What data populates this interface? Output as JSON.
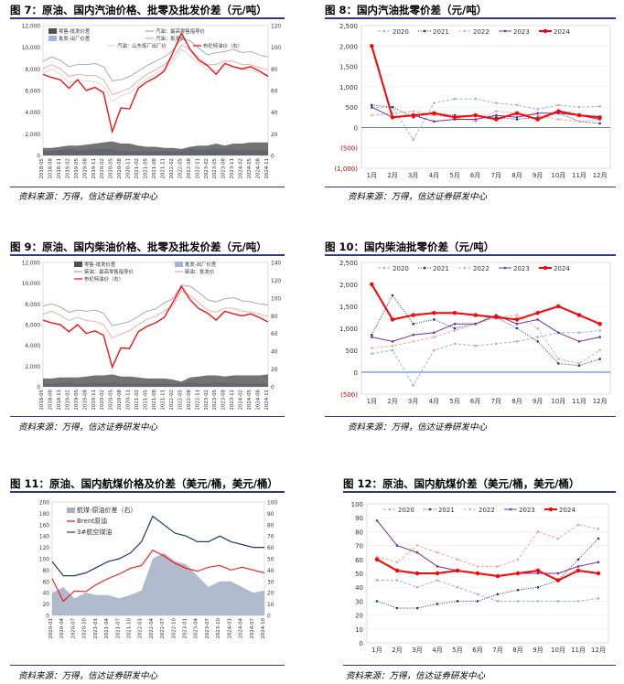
{
  "titles": {
    "fig7": "图 7：原油、国内汽油价格、批零及批发价差（元/吨）",
    "fig8": "图 8：国内汽油批零价差（元/吨）",
    "fig9": "图 9：原油、国内柴油价格、批零及批发价差（元/吨）",
    "fig10": "图 10：国内柴油批零价差（元/吨）",
    "fig11": "图 11：原油、国内航煤价格及价差（美元/桶，美元/桶）",
    "fig12": "图 12：原油、国内航煤价差（美元/桶，美元/桶）"
  },
  "source_text": "资料来源：万得，信达证券研发中心",
  "colors": {
    "rule": "#2b3a8f",
    "y2020": "#9fb3d6",
    "y2021": "#1f3b73",
    "y2022": "#f4a59c",
    "y2023": "#7030a0",
    "y2024": "#ff0000",
    "brent": "#ff0000",
    "retail": "#9aa3b8",
    "wholesale_spread": "#505050",
    "refinery_spread": "#9db4e0",
    "navy": "#1f3b73"
  },
  "month_labels": [
    "1月",
    "2月",
    "3月",
    "4月",
    "5月",
    "6月",
    "7月",
    "8月",
    "9月",
    "10月",
    "11月",
    "12月"
  ],
  "chart_data": [
    {
      "id": "fig7",
      "type": "area",
      "title": "图 7：原油、国内汽油价格、批零及批发价差（元/吨）",
      "legend": [
        "零售-批发价差",
        "批发-出厂价差",
        "汽油：最高零售指导价",
        "汽油：批发价",
        "汽油：山东炼厂出厂价",
        "布伦特油价（右）"
      ],
      "y_ticks": [
        "0",
        "2,000",
        "4,000",
        "6,000",
        "8,000",
        "10,000",
        "12,000"
      ],
      "ylim": [
        0,
        12000
      ],
      "y2_ticks": [
        "0",
        "20",
        "40",
        "60",
        "80",
        "100",
        "120"
      ],
      "y2lim": [
        0,
        120
      ],
      "x_ticks": [
        "2018-05",
        "2018-08",
        "2018-11",
        "2019-02",
        "2019-05",
        "2019-08",
        "2019-11",
        "2020-02",
        "2020-05",
        "2020-08",
        "2020-11",
        "2021-02",
        "2021-05",
        "2021-08",
        "2021-11",
        "2022-02",
        "2022-05",
        "2022-08",
        "2022-11",
        "2023-02",
        "2023-05",
        "2023-08",
        "2023-11",
        "2024-02",
        "2024-05",
        "2024-08",
        "2024-11"
      ],
      "series": [
        {
          "name": "汽油：最高零售指导价",
          "values": [
            8700,
            9100,
            8800,
            8200,
            8400,
            8400,
            8500,
            8200,
            6900,
            7000,
            7300,
            7800,
            8300,
            8700,
            9100,
            9700,
            10800,
            10600,
            9900,
            9300,
            9500,
            9600,
            9800,
            9500,
            9600,
            9300,
            9100
          ]
        },
        {
          "name": "汽油：批发价",
          "values": [
            8000,
            8400,
            8000,
            7300,
            7500,
            7400,
            7400,
            7000,
            5600,
            5900,
            6200,
            6900,
            7500,
            7900,
            8400,
            9000,
            10200,
            9800,
            9000,
            8400,
            8400,
            8700,
            8700,
            8400,
            8400,
            8100,
            7900
          ]
        },
        {
          "name": "汽油：山东炼厂出厂价",
          "values": [
            7600,
            8000,
            7500,
            6700,
            7000,
            6900,
            6800,
            6400,
            5000,
            5500,
            5800,
            6500,
            7100,
            7500,
            8000,
            8600,
            9800,
            9200,
            8500,
            7900,
            7800,
            8100,
            8200,
            7900,
            7900,
            7600,
            7500
          ]
        },
        {
          "name": "布伦特油价（右）",
          "values": [
            75,
            72,
            70,
            62,
            70,
            60,
            63,
            58,
            22,
            44,
            43,
            62,
            68,
            72,
            78,
            95,
            113,
            98,
            88,
            83,
            75,
            85,
            82,
            80,
            82,
            78,
            73
          ]
        },
        {
          "name": "零售-批发价差",
          "values": [
            700,
            700,
            800,
            900,
            900,
            1000,
            1100,
            1200,
            1300,
            1100,
            1100,
            900,
            800,
            800,
            700,
            700,
            600,
            800,
            900,
            900,
            1100,
            900,
            1100,
            1100,
            1200,
            1200,
            1200
          ]
        },
        {
          "name": "批发-出厂价差",
          "values": [
            400,
            400,
            500,
            600,
            500,
            500,
            600,
            600,
            600,
            400,
            400,
            400,
            400,
            400,
            400,
            400,
            400,
            600,
            500,
            500,
            600,
            600,
            500,
            500,
            500,
            500,
            400
          ]
        }
      ]
    },
    {
      "id": "fig8",
      "type": "line",
      "title": "图 8：国内汽油批零价差（元/吨）",
      "y_ticks": [
        "(1,000)",
        "(500)",
        "0",
        "500",
        "1,000",
        "1,500",
        "2,000",
        "2,500"
      ],
      "ylim": [
        -1000,
        2500
      ],
      "categories": [
        "1月",
        "2月",
        "3月",
        "4月",
        "5月",
        "6月",
        "7月",
        "8月",
        "9月",
        "10月",
        "11月",
        "12月"
      ],
      "series": [
        {
          "name": "2020",
          "values": [
            480,
            500,
            -300,
            600,
            700,
            700,
            600,
            550,
            450,
            550,
            500,
            520
          ]
        },
        {
          "name": "2021",
          "values": [
            550,
            500,
            250,
            350,
            300,
            280,
            250,
            200,
            250,
            350,
            150,
            100
          ]
        },
        {
          "name": "2022",
          "values": [
            300,
            350,
            400,
            300,
            250,
            150,
            400,
            350,
            300,
            200,
            150,
            200
          ]
        },
        {
          "name": "2023",
          "values": [
            500,
            250,
            300,
            150,
            200,
            200,
            300,
            250,
            350,
            350,
            300,
            200
          ]
        },
        {
          "name": "2024",
          "values": [
            2000,
            250,
            300,
            350,
            250,
            300,
            200,
            350,
            200,
            400,
            300,
            250
          ]
        }
      ]
    },
    {
      "id": "fig9",
      "type": "area",
      "title": "图 9：原油、国内柴油价格、批零及批发价差（元/吨）",
      "legend": [
        "零售-批发价差",
        "批发-出厂价差",
        "柴油：最高零售指导价",
        "柴油：批发价",
        "布伦特油价（右）"
      ],
      "y_ticks": [
        "0",
        "2,000",
        "4,000",
        "6,000",
        "8,000",
        "10,000",
        "12,000"
      ],
      "ylim": [
        0,
        12000
      ],
      "y2_ticks": [
        "0",
        "20",
        "40",
        "60",
        "80",
        "100",
        "120",
        "140"
      ],
      "y2lim": [
        0,
        140
      ],
      "x_ticks": [
        "2018-05",
        "2018-08",
        "2018-11",
        "2019-02",
        "2019-05",
        "2019-08",
        "2019-11",
        "2020-02",
        "2020-05",
        "2020-08",
        "2020-11",
        "2021-02",
        "2021-05",
        "2021-08",
        "2021-11",
        "2022-02",
        "2022-05",
        "2022-08",
        "2022-11",
        "2023-02",
        "2023-05",
        "2023-08",
        "2023-11",
        "2024-02",
        "2024-05",
        "2024-08",
        "2024-11"
      ],
      "series": [
        {
          "name": "柴油：最高零售指导价",
          "values": [
            7800,
            8000,
            7700,
            7200,
            7400,
            7300,
            7400,
            7100,
            5900,
            6100,
            6300,
            6800,
            7300,
            7500,
            8100,
            8500,
            9800,
            9700,
            9100,
            8400,
            8200,
            8500,
            8600,
            8300,
            8200,
            8000,
            7900
          ]
        },
        {
          "name": "柴油：批发价",
          "values": [
            7000,
            7300,
            6900,
            6400,
            6700,
            6400,
            6300,
            6000,
            4700,
            5100,
            5400,
            6000,
            6500,
            6800,
            7300,
            7800,
            9300,
            8800,
            8100,
            7400,
            7200,
            7600,
            7600,
            7300,
            7200,
            7000,
            6800
          ]
        },
        {
          "name": "布伦特油价（右）",
          "values": [
            75,
            72,
            70,
            62,
            70,
            60,
            63,
            58,
            22,
            44,
            43,
            62,
            68,
            72,
            78,
            95,
            113,
            98,
            88,
            83,
            75,
            85,
            82,
            80,
            82,
            78,
            73
          ]
        },
        {
          "name": "零售-批发价差",
          "values": [
            800,
            800,
            900,
            900,
            900,
            1000,
            1100,
            1100,
            1200,
            1000,
            1000,
            900,
            800,
            800,
            800,
            700,
            500,
            900,
            1000,
            1100,
            1100,
            1000,
            1100,
            1100,
            1100,
            1100,
            1200
          ]
        },
        {
          "name": "批发-出厂价差",
          "values": [
            300,
            300,
            300,
            400,
            300,
            300,
            400,
            400,
            400,
            300,
            300,
            300,
            300,
            300,
            300,
            300,
            300,
            400,
            300,
            300,
            400,
            400,
            300,
            300,
            300,
            300,
            300
          ]
        }
      ]
    },
    {
      "id": "fig10",
      "type": "line",
      "title": "图 10：国内柴油批零价差（元/吨）",
      "y_ticks": [
        "(500)",
        "0",
        "500",
        "1,000",
        "1,500",
        "2,000",
        "2,500"
      ],
      "ylim": [
        -500,
        2500
      ],
      "categories": [
        "1月",
        "2月",
        "3月",
        "4月",
        "5月",
        "6月",
        "7月",
        "8月",
        "9月",
        "10月",
        "11月",
        "12月"
      ],
      "series": [
        {
          "name": "2020",
          "values": [
            420,
            500,
            -300,
            500,
            650,
            600,
            650,
            700,
            800,
            900,
            900,
            950
          ]
        },
        {
          "name": "2021",
          "values": [
            850,
            1750,
            1100,
            1200,
            1000,
            1100,
            1250,
            1000,
            700,
            200,
            150,
            300
          ]
        },
        {
          "name": "2022",
          "values": [
            550,
            600,
            700,
            800,
            950,
            1100,
            1250,
            1300,
            1000,
            300,
            200,
            500
          ]
        },
        {
          "name": "2023",
          "values": [
            800,
            700,
            850,
            900,
            1100,
            1100,
            1300,
            1100,
            1200,
            900,
            700,
            800
          ]
        },
        {
          "name": "2024",
          "values": [
            2000,
            1200,
            1300,
            1350,
            1350,
            1300,
            1250,
            1200,
            1350,
            1500,
            1300,
            1100
          ]
        }
      ]
    },
    {
      "id": "fig11",
      "type": "area",
      "title": "图 11：原油、国内航煤价格及价差（美元/桶，美元/桶）",
      "legend": [
        "航煤-原油价差（右）",
        "Brent原油",
        "3#航空煤油"
      ],
      "y_ticks": [
        "0",
        "20",
        "40",
        "60",
        "80",
        "100",
        "120",
        "140",
        "160",
        "180",
        "200"
      ],
      "ylim": [
        0,
        200
      ],
      "y2_ticks": [
        "0",
        "10",
        "20",
        "30",
        "40",
        "50",
        "60",
        "70",
        "80",
        "90",
        "100"
      ],
      "y2lim": [
        0,
        100
      ],
      "x_ticks": [
        "2020-01",
        "2020-04",
        "2020-07",
        "2020-10",
        "2021-01",
        "2021-04",
        "2021-07",
        "2021-10",
        "2022-01",
        "2022-04",
        "2022-07",
        "2022-10",
        "2023-01",
        "2023-04",
        "2023-07",
        "2023-10",
        "2024-01",
        "2024-04",
        "2024-07",
        "2024-10"
      ],
      "series": [
        {
          "name": "3#航空煤油",
          "values": [
            95,
            70,
            70,
            75,
            85,
            95,
            100,
            110,
            130,
            175,
            160,
            145,
            140,
            130,
            130,
            140,
            130,
            125,
            120,
            120
          ]
        },
        {
          "name": "Brent原油",
          "values": [
            65,
            25,
            43,
            42,
            55,
            65,
            73,
            83,
            88,
            115,
            105,
            92,
            83,
            78,
            85,
            88,
            80,
            85,
            80,
            75
          ]
        },
        {
          "name": "航煤-原油价差（右）",
          "values": [
            20,
            25,
            15,
            20,
            18,
            18,
            15,
            18,
            22,
            50,
            55,
            48,
            45,
            35,
            25,
            30,
            30,
            25,
            20,
            22
          ]
        }
      ]
    },
    {
      "id": "fig12",
      "type": "line",
      "title": "图 12：原油、国内航煤价差（美元/桶，美元/桶）",
      "y_ticks": [
        "0",
        "10",
        "20",
        "30",
        "40",
        "50",
        "60",
        "70",
        "80",
        "90",
        "100"
      ],
      "ylim": [
        0,
        100
      ],
      "categories": [
        "1月",
        "2月",
        "3月",
        "4月",
        "5月",
        "6月",
        "7月",
        "8月",
        "9月",
        "10月",
        "11月",
        "12月"
      ],
      "series": [
        {
          "name": "2020",
          "values": [
            45,
            45,
            40,
            45,
            40,
            35,
            30,
            30,
            30,
            30,
            30,
            32
          ]
        },
        {
          "name": "2021",
          "values": [
            30,
            25,
            25,
            28,
            30,
            30,
            35,
            38,
            40,
            45,
            60,
            75
          ]
        },
        {
          "name": "2022",
          "values": [
            62,
            58,
            70,
            65,
            60,
            55,
            55,
            60,
            80,
            75,
            85,
            82
          ]
        },
        {
          "name": "2023",
          "values": [
            88,
            70,
            65,
            55,
            52,
            50,
            48,
            50,
            50,
            50,
            55,
            58
          ]
        },
        {
          "name": "2024",
          "values": [
            60,
            52,
            50,
            50,
            52,
            50,
            48,
            50,
            52,
            45,
            52,
            50
          ]
        }
      ]
    }
  ]
}
